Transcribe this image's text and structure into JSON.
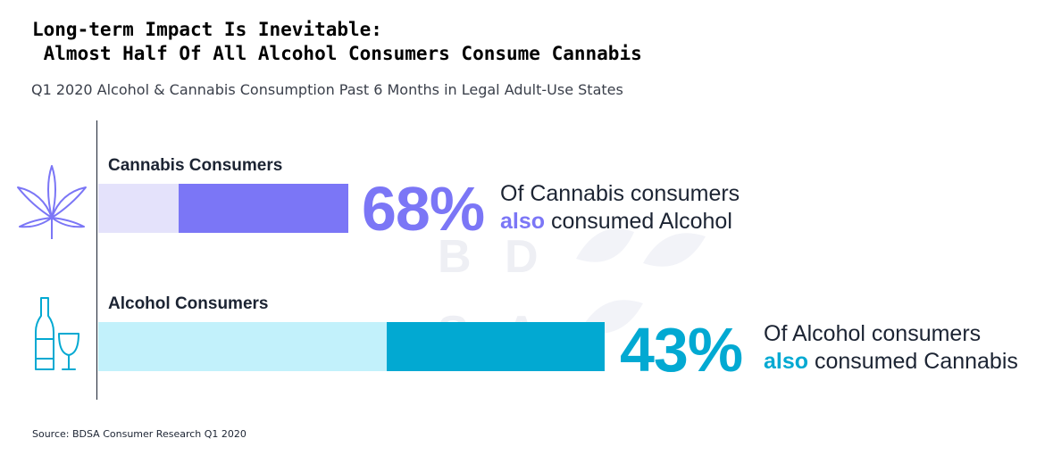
{
  "title_lines": [
    "Long-term Impact Is Inevitable:",
    " Almost Half Of All Alcohol Consumers Consume Cannabis"
  ],
  "subtitle": "Q1 2020 Alcohol & Cannabis Consumption Past 6 Months in Legal Adult-Use States",
  "source": "Source: BDSA Consumer Research Q1 2020",
  "watermark": [
    "B",
    "D",
    "S",
    "A"
  ],
  "colors": {
    "cannabis_fill": "#7b76f6",
    "cannabis_track": "#e4e2fb",
    "alcohol_fill": "#02a9d2",
    "alcohol_track": "#c2f1fb"
  },
  "chart_data": {
    "type": "bar",
    "orientation": "horizontal",
    "categories": [
      "Cannabis Consumers",
      "Alcohol Consumers"
    ],
    "series": [
      {
        "values": [
          68,
          43
        ]
      }
    ],
    "group_total": [
      100,
      100
    ],
    "annotations": [
      {
        "value_label": "68%",
        "line1": "Of Cannabis consumers",
        "highlight": "also",
        "line2_rest": " consumed Alcohol"
      },
      {
        "value_label": "43%",
        "line1": "Of Alcohol consumers",
        "highlight": "also",
        "line2_rest": " consumed Cannabis"
      }
    ],
    "icons": [
      "cannabis-leaf-icon",
      "wine-bottle-glass-icon"
    ],
    "xlabel": "",
    "ylabel": ""
  }
}
